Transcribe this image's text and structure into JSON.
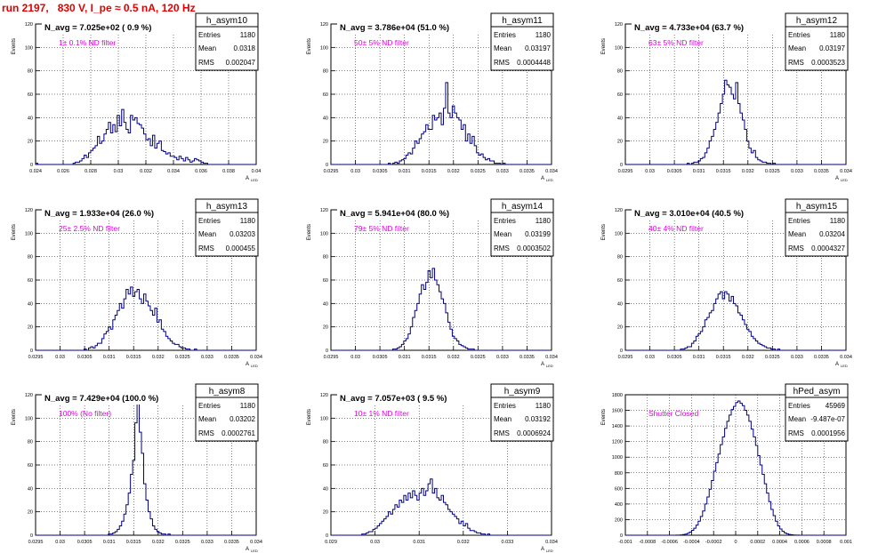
{
  "page": {
    "title": "run 2197,   830 V, I_pe ≈ 0.5 nA, 120 Hz"
  },
  "colors": {
    "title": "#e00000",
    "filter_label": "#e000e0",
    "histogram_line": "#000080",
    "grid": "#000000",
    "background": "#ffffff"
  },
  "stats_labels": {
    "entries": "Entries",
    "mean": "Mean",
    "rms": "RMS"
  },
  "chart_data": [
    {
      "type": "bar",
      "name": "h_asym10",
      "navg": "N_avg = 7.025e+02 ( 0.9 %)",
      "filter": "1± 0.1% ND filter",
      "entries": "1180",
      "mean": "0.0318",
      "rms": "0.002047",
      "ylabel": "Events",
      "xlabel": "A",
      "xlabel_sub": "LED",
      "xlim": [
        0.024,
        0.04
      ],
      "ylim": [
        0,
        120
      ],
      "xticks": [
        "0.024",
        "0.026",
        "0.028",
        "0.03",
        "0.032",
        "0.034",
        "0.036",
        "0.038",
        "0.04"
      ],
      "yticks": [
        "0",
        "20",
        "40",
        "60",
        "80",
        "100",
        "120"
      ],
      "grid": true,
      "values": [
        1,
        0,
        0,
        0,
        0,
        0,
        0,
        0,
        0,
        0,
        0,
        0,
        0,
        0,
        0,
        0,
        0,
        1,
        2,
        2,
        3,
        5,
        8,
        6,
        10,
        12,
        14,
        16,
        24,
        18,
        20,
        26,
        30,
        36,
        27,
        34,
        28,
        42,
        33,
        47,
        36,
        30,
        27,
        42,
        38,
        40,
        35,
        34,
        31,
        26,
        21,
        22,
        16,
        25,
        14,
        18,
        20,
        12,
        11,
        9,
        10,
        7,
        7,
        6,
        4,
        7,
        5,
        3,
        6,
        4,
        2,
        3,
        5,
        4,
        3,
        2,
        1,
        1,
        0,
        0,
        0,
        0,
        0,
        0,
        0,
        0,
        0,
        0,
        0,
        0,
        0,
        0,
        0,
        0,
        0,
        0,
        0,
        0,
        0,
        0
      ]
    },
    {
      "type": "bar",
      "name": "h_asym11",
      "navg": "N_avg = 3.786e+04 (51.0 %)",
      "filter": "50± 5% ND filter",
      "entries": "1180",
      "mean": "0.03197",
      "rms": "0.0004448",
      "ylabel": "Events",
      "xlabel": "A",
      "xlabel_sub": "LED",
      "xlim": [
        0.0295,
        0.034
      ],
      "ylim": [
        0,
        120
      ],
      "xticks": [
        "0.0295",
        "0.03",
        "0.0305",
        "0.031",
        "0.0315",
        "0.032",
        "0.0325",
        "0.033",
        "0.0335",
        "0.034"
      ],
      "yticks": [
        "0",
        "20",
        "40",
        "60",
        "80",
        "100",
        "120"
      ],
      "grid": true,
      "values": [
        0,
        0,
        0,
        0,
        0,
        0,
        0,
        0,
        0,
        0,
        0,
        0,
        0,
        0,
        0,
        0,
        0,
        0,
        0,
        0,
        0,
        0,
        0,
        0,
        0,
        0,
        1,
        0,
        1,
        2,
        1,
        3,
        4,
        5,
        8,
        10,
        9,
        14,
        20,
        18,
        22,
        26,
        28,
        34,
        30,
        30,
        42,
        38,
        40,
        44,
        34,
        48,
        70,
        44,
        40,
        50,
        44,
        40,
        38,
        30,
        34,
        20,
        26,
        18,
        24,
        16,
        10,
        8,
        9,
        6,
        4,
        5,
        3,
        3,
        1,
        1,
        1,
        0,
        1,
        0,
        0,
        0,
        0,
        0,
        0,
        0,
        0,
        0,
        0,
        0,
        0,
        0,
        0,
        0,
        0,
        0,
        0,
        0,
        0,
        0
      ]
    },
    {
      "type": "bar",
      "name": "h_asym12",
      "navg": "N_avg = 4.733e+04 (63.7 %)",
      "filter": "63± 5% ND filter",
      "entries": "1180",
      "mean": "0.03197",
      "rms": "0.0003523",
      "ylabel": "Events",
      "xlabel": "A",
      "xlabel_sub": "LED",
      "xlim": [
        0.0295,
        0.034
      ],
      "ylim": [
        0,
        120
      ],
      "xticks": [
        "0.0295",
        "0.03",
        "0.0305",
        "0.031",
        "0.0315",
        "0.032",
        "0.0325",
        "0.033",
        "0.0335",
        "0.034"
      ],
      "yticks": [
        "0",
        "20",
        "40",
        "60",
        "80",
        "100",
        "120"
      ],
      "grid": true,
      "values": [
        0,
        0,
        0,
        0,
        0,
        0,
        0,
        0,
        0,
        0,
        0,
        0,
        0,
        0,
        0,
        0,
        0,
        0,
        0,
        0,
        0,
        0,
        0,
        0,
        0,
        0,
        0,
        0,
        1,
        0,
        1,
        2,
        2,
        3,
        5,
        6,
        10,
        14,
        20,
        24,
        30,
        36,
        44,
        52,
        60,
        72,
        68,
        66,
        60,
        56,
        70,
        52,
        44,
        38,
        30,
        20,
        14,
        10,
        12,
        6,
        4,
        3,
        2,
        2,
        1,
        1,
        0,
        1,
        0,
        0,
        0,
        0,
        0,
        0,
        0,
        0,
        0,
        0,
        0,
        0,
        0,
        0,
        0,
        0,
        0,
        0,
        0,
        0,
        0,
        0,
        0,
        0,
        0,
        0,
        0,
        0,
        0,
        0,
        0,
        0
      ]
    },
    {
      "type": "bar",
      "name": "h_asym13",
      "navg": "N_avg = 1.933e+04 (26.0 %)",
      "filter": "25± 2.5% ND filter",
      "entries": "1180",
      "mean": "0.03203",
      "rms": "0.000455",
      "ylabel": "Events",
      "xlabel": "A",
      "xlabel_sub": "LED",
      "xlim": [
        0.0295,
        0.034
      ],
      "ylim": [
        0,
        120
      ],
      "xticks": [
        "0.0295",
        "0.03",
        "0.0305",
        "0.031",
        "0.0315",
        "0.032",
        "0.0325",
        "0.033",
        "0.0335",
        "0.034"
      ],
      "yticks": [
        "0",
        "20",
        "40",
        "60",
        "80",
        "100",
        "120"
      ],
      "grid": true,
      "values": [
        0,
        0,
        0,
        0,
        0,
        0,
        0,
        0,
        0,
        0,
        0,
        0,
        0,
        0,
        0,
        0,
        0,
        0,
        0,
        0,
        0,
        0,
        1,
        0,
        2,
        3,
        2,
        4,
        6,
        6,
        10,
        14,
        16,
        20,
        18,
        26,
        30,
        34,
        40,
        36,
        44,
        52,
        48,
        54,
        46,
        50,
        52,
        44,
        40,
        48,
        42,
        38,
        34,
        30,
        36,
        24,
        26,
        18,
        16,
        12,
        10,
        8,
        6,
        5,
        5,
        3,
        2,
        2,
        1,
        1,
        0,
        0,
        1,
        0,
        0,
        0,
        0,
        0,
        0,
        0,
        0,
        0,
        0,
        0,
        0,
        0,
        0,
        0,
        0,
        0,
        0,
        0,
        0,
        0,
        0,
        0,
        0,
        0,
        0,
        0
      ]
    },
    {
      "type": "bar",
      "name": "h_asym14",
      "navg": "N_avg = 5.941e+04 (80.0 %)",
      "filter": "79± 5% ND filter",
      "entries": "1180",
      "mean": "0.03199",
      "rms": "0.0003502",
      "ylabel": "Events",
      "xlabel": "A",
      "xlabel_sub": "LED",
      "xlim": [
        0.0295,
        0.034
      ],
      "ylim": [
        0,
        120
      ],
      "xticks": [
        "0.0295",
        "0.03",
        "0.0305",
        "0.031",
        "0.0315",
        "0.032",
        "0.0325",
        "0.033",
        "0.0335",
        "0.034"
      ],
      "yticks": [
        "0",
        "20",
        "40",
        "60",
        "80",
        "100",
        "120"
      ],
      "grid": true,
      "values": [
        0,
        0,
        0,
        0,
        0,
        0,
        0,
        0,
        0,
        0,
        0,
        0,
        0,
        0,
        0,
        0,
        0,
        0,
        0,
        0,
        0,
        0,
        0,
        0,
        0,
        0,
        0,
        0,
        1,
        1,
        2,
        3,
        5,
        8,
        10,
        14,
        20,
        28,
        34,
        40,
        48,
        56,
        52,
        58,
        68,
        62,
        70,
        60,
        56,
        50,
        44,
        40,
        32,
        24,
        18,
        12,
        10,
        8,
        5,
        4,
        3,
        2,
        1,
        1,
        1,
        0,
        0,
        0,
        0,
        0,
        0,
        0,
        0,
        0,
        0,
        0,
        0,
        0,
        0,
        0,
        0,
        0,
        0,
        0,
        0,
        0,
        0,
        0,
        0,
        0,
        0,
        0,
        0,
        0,
        0,
        0,
        0,
        0,
        0,
        0
      ]
    },
    {
      "type": "bar",
      "name": "h_asym15",
      "navg": "N_avg = 3.010e+04 (40.5 %)",
      "filter": "40± 4% ND filter",
      "entries": "1180",
      "mean": "0.03204",
      "rms": "0.0004327",
      "ylabel": "Events",
      "xlabel": "A",
      "xlabel_sub": "LED",
      "xlim": [
        0.0295,
        0.034
      ],
      "ylim": [
        0,
        120
      ],
      "xticks": [
        "0.0295",
        "0.03",
        "0.0305",
        "0.031",
        "0.0315",
        "0.032",
        "0.0325",
        "0.033",
        "0.0335",
        "0.034"
      ],
      "yticks": [
        "0",
        "20",
        "40",
        "60",
        "80",
        "100",
        "120"
      ],
      "grid": true,
      "values": [
        0,
        0,
        0,
        0,
        0,
        0,
        0,
        0,
        0,
        0,
        0,
        0,
        0,
        0,
        0,
        0,
        0,
        0,
        0,
        0,
        0,
        0,
        0,
        0,
        0,
        1,
        1,
        2,
        3,
        3,
        6,
        8,
        12,
        14,
        16,
        20,
        26,
        28,
        32,
        34,
        40,
        44,
        48,
        50,
        44,
        50,
        48,
        42,
        46,
        40,
        38,
        32,
        30,
        26,
        22,
        18,
        16,
        12,
        10,
        8,
        6,
        5,
        4,
        3,
        2,
        2,
        1,
        1,
        0,
        1,
        0,
        0,
        0,
        0,
        0,
        0,
        0,
        0,
        0,
        0,
        0,
        0,
        0,
        0,
        0,
        0,
        0,
        0,
        0,
        0,
        0,
        0,
        0,
        0,
        0,
        0,
        0,
        0,
        0,
        0
      ]
    },
    {
      "type": "bar",
      "name": "h_asym8",
      "navg": "N_avg = 7.429e+04 (100.0 %)",
      "filter": "100% (No filter)",
      "entries": "1180",
      "mean": "0.03202",
      "rms": "0.0002761",
      "ylabel": "Events",
      "xlabel": "A",
      "xlabel_sub": "LED",
      "xlim": [
        0.0295,
        0.034
      ],
      "ylim": [
        0,
        120
      ],
      "xticks": [
        "0.0295",
        "0.03",
        "0.0305",
        "0.031",
        "0.0315",
        "0.032",
        "0.0325",
        "0.033",
        "0.0335",
        "0.034"
      ],
      "yticks": [
        "0",
        "20",
        "40",
        "60",
        "80",
        "100",
        "120"
      ],
      "grid": true,
      "values": [
        0,
        0,
        0,
        0,
        0,
        0,
        0,
        0,
        0,
        0,
        0,
        0,
        0,
        0,
        0,
        0,
        0,
        0,
        0,
        0,
        0,
        0,
        0,
        0,
        0,
        0,
        0,
        0,
        0,
        0,
        0,
        0,
        0,
        1,
        1,
        2,
        3,
        5,
        8,
        12,
        18,
        26,
        36,
        52,
        64,
        96,
        118,
        88,
        70,
        44,
        30,
        20,
        14,
        8,
        5,
        3,
        2,
        1,
        1,
        0,
        1,
        0,
        0,
        0,
        0,
        0,
        0,
        0,
        0,
        0,
        0,
        0,
        0,
        0,
        0,
        0,
        0,
        0,
        0,
        0,
        0,
        0,
        0,
        0,
        0,
        0,
        0,
        0,
        0,
        0,
        0,
        0,
        0,
        0,
        0,
        0,
        0,
        0,
        0,
        0
      ]
    },
    {
      "type": "bar",
      "name": "h_asym9",
      "navg": "N_avg = 7.057e+03 ( 9.5 %)",
      "filter": "10± 1% ND filter",
      "entries": "1180",
      "mean": "0.03192",
      "rms": "0.0006924",
      "ylabel": "Events",
      "xlabel": "A",
      "xlabel_sub": "LED",
      "xlim": [
        0.029,
        0.034
      ],
      "ylim": [
        0,
        120
      ],
      "xticks": [
        "0.029",
        "0.03",
        "0.031",
        "0.032",
        "0.033",
        "0.034"
      ],
      "yticks": [
        "0",
        "20",
        "40",
        "60",
        "80",
        "100",
        "120"
      ],
      "grid": true,
      "values": [
        0,
        0,
        0,
        0,
        0,
        0,
        0,
        0,
        0,
        0,
        0,
        0,
        0,
        0,
        1,
        1,
        2,
        3,
        3,
        5,
        6,
        8,
        10,
        12,
        14,
        16,
        20,
        18,
        22,
        26,
        24,
        30,
        28,
        34,
        30,
        36,
        32,
        38,
        34,
        30,
        36,
        40,
        34,
        38,
        44,
        48,
        36,
        40,
        32,
        30,
        34,
        28,
        26,
        22,
        20,
        18,
        16,
        14,
        10,
        12,
        8,
        10,
        6,
        4,
        4,
        3,
        2,
        2,
        1,
        1,
        0,
        1,
        0,
        0,
        0,
        0,
        0,
        0,
        0,
        0,
        0,
        0,
        0,
        0,
        0,
        0,
        0,
        0,
        0,
        0,
        0,
        0,
        0,
        0,
        0,
        0,
        0,
        0,
        0,
        0
      ]
    },
    {
      "type": "bar",
      "name": "hPed_asym",
      "navg": "",
      "filter": "Shutter Closed",
      "entries": "45969",
      "mean": "-9.487e-07",
      "rms": "0.0001956",
      "ylabel": "Events",
      "xlabel": "",
      "xlabel_sub": "",
      "xlim": [
        -0.001,
        0.001
      ],
      "ylim": [
        0,
        1800
      ],
      "xticks": [
        "-0.001",
        "-0.0008",
        "-0.0006",
        "-0.0004",
        "-0.0002",
        "0",
        "0.0002",
        "0.0004",
        "0.0006",
        "0.0008",
        "0.001"
      ],
      "yticks": [
        "0",
        "200",
        "400",
        "600",
        "800",
        "1000",
        "1200",
        "1400",
        "1600",
        "1800"
      ],
      "grid": true,
      "values": [
        0,
        0,
        0,
        0,
        0,
        0,
        0,
        0,
        0,
        0,
        0,
        0,
        0,
        0,
        0,
        0,
        0,
        0,
        0,
        0,
        0,
        0,
        0,
        1,
        2,
        4,
        8,
        14,
        24,
        40,
        62,
        90,
        130,
        180,
        240,
        310,
        400,
        490,
        590,
        700,
        820,
        930,
        1040,
        1160,
        1260,
        1370,
        1460,
        1540,
        1610,
        1650,
        1700,
        1720,
        1690,
        1660,
        1600,
        1540,
        1460,
        1360,
        1260,
        1150,
        1020,
        900,
        780,
        660,
        540,
        430,
        330,
        250,
        180,
        120,
        80,
        50,
        30,
        18,
        10,
        6,
        3,
        2,
        1,
        0,
        0,
        0,
        0,
        0,
        0,
        0,
        0,
        0,
        0,
        0,
        0,
        0,
        0,
        0,
        0,
        0,
        0,
        0,
        0,
        0
      ]
    }
  ]
}
